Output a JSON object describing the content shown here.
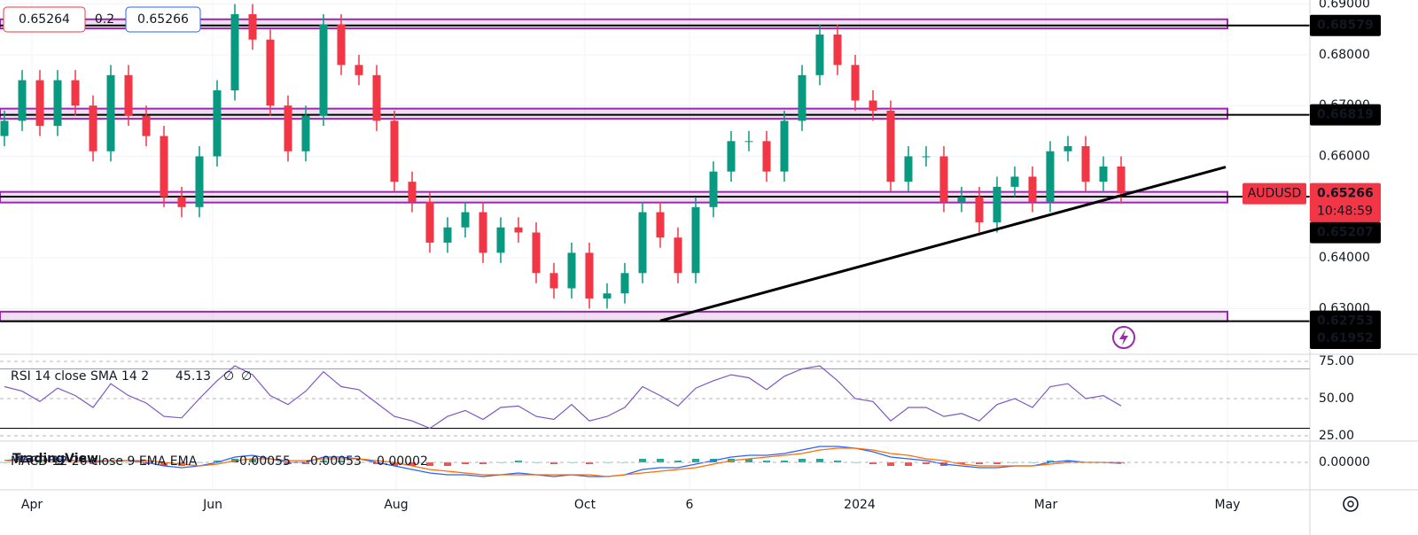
{
  "header": {
    "bid": "0.65264",
    "spread": "0.2",
    "ask": "0.65266"
  },
  "watermark": "TradingView",
  "chart_data": [
    {
      "type": "candlestick",
      "symbol": "AUDUSD",
      "open": [
        0.664,
        0.667,
        0.675,
        0.666,
        0.675,
        0.67,
        0.661,
        0.676,
        0.668,
        0.664,
        0.652,
        0.65,
        0.66,
        0.673,
        0.688,
        0.683,
        0.67,
        0.661,
        0.668,
        0.686,
        0.678,
        0.676,
        0.667,
        0.655,
        0.651,
        0.643,
        0.646,
        0.649,
        0.641,
        0.646,
        0.645,
        0.637,
        0.634,
        0.641,
        0.632,
        0.633,
        0.637,
        0.649,
        0.644,
        0.637,
        0.65,
        0.657,
        0.663,
        0.663,
        0.657,
        0.667,
        0.676,
        0.684,
        0.678,
        0.671,
        0.669,
        0.655,
        0.66,
        0.66,
        0.651,
        0.652,
        0.647,
        0.654,
        0.656,
        0.651,
        0.661,
        0.662,
        0.655,
        0.658
      ],
      "high": [
        0.669,
        0.677,
        0.677,
        0.677,
        0.677,
        0.672,
        0.678,
        0.678,
        0.67,
        0.666,
        0.654,
        0.662,
        0.675,
        0.69,
        0.69,
        0.685,
        0.672,
        0.67,
        0.688,
        0.688,
        0.68,
        0.678,
        0.669,
        0.657,
        0.653,
        0.648,
        0.651,
        0.651,
        0.648,
        0.648,
        0.647,
        0.639,
        0.643,
        0.643,
        0.635,
        0.639,
        0.651,
        0.651,
        0.646,
        0.652,
        0.659,
        0.665,
        0.665,
        0.665,
        0.669,
        0.678,
        0.686,
        0.686,
        0.68,
        0.673,
        0.671,
        0.662,
        0.662,
        0.662,
        0.654,
        0.654,
        0.656,
        0.658,
        0.658,
        0.663,
        0.664,
        0.664,
        0.66,
        0.66
      ],
      "low": [
        0.662,
        0.665,
        0.664,
        0.664,
        0.668,
        0.659,
        0.659,
        0.666,
        0.662,
        0.65,
        0.648,
        0.648,
        0.658,
        0.671,
        0.681,
        0.668,
        0.659,
        0.659,
        0.666,
        0.676,
        0.674,
        0.665,
        0.653,
        0.649,
        0.641,
        0.641,
        0.644,
        0.639,
        0.639,
        0.643,
        0.635,
        0.632,
        0.632,
        0.63,
        0.63,
        0.631,
        0.635,
        0.642,
        0.635,
        0.635,
        0.648,
        0.655,
        0.661,
        0.655,
        0.655,
        0.665,
        0.674,
        0.676,
        0.669,
        0.667,
        0.653,
        0.653,
        0.658,
        0.649,
        0.649,
        0.645,
        0.645,
        0.652,
        0.649,
        0.649,
        0.659,
        0.653,
        0.653,
        0.6507
      ],
      "close": [
        0.667,
        0.675,
        0.666,
        0.675,
        0.67,
        0.661,
        0.676,
        0.668,
        0.664,
        0.652,
        0.65,
        0.66,
        0.673,
        0.688,
        0.683,
        0.67,
        0.661,
        0.668,
        0.686,
        0.678,
        0.676,
        0.667,
        0.655,
        0.651,
        0.643,
        0.646,
        0.649,
        0.641,
        0.646,
        0.645,
        0.637,
        0.634,
        0.641,
        0.632,
        0.633,
        0.637,
        0.649,
        0.644,
        0.637,
        0.65,
        0.657,
        0.663,
        0.663,
        0.657,
        0.667,
        0.676,
        0.684,
        0.678,
        0.671,
        0.669,
        0.655,
        0.66,
        0.66,
        0.651,
        0.652,
        0.647,
        0.654,
        0.656,
        0.651,
        0.661,
        0.662,
        0.655,
        0.658,
        0.6527
      ],
      "up_color": "#089981",
      "down_color": "#f23645",
      "xlim": [
        -0.25,
        73.65
      ],
      "xticks": [
        {
          "value": 1.55,
          "label": "Apr"
        },
        {
          "value": 11.75,
          "label": "Jun"
        },
        {
          "value": 22.1,
          "label": "Aug"
        },
        {
          "value": 32.75,
          "label": "Oct"
        },
        {
          "value": 38.65,
          "label": "6"
        },
        {
          "value": 48.25,
          "label": "2024"
        },
        {
          "value": 58.75,
          "label": "Mar"
        },
        {
          "value": 69,
          "label": "May"
        }
      ],
      "ylim": [
        0.621,
        0.6908
      ],
      "yticks": [
        {
          "value": 0.69,
          "label": "0.69000"
        },
        {
          "value": 0.68,
          "label": "0.68000"
        },
        {
          "value": 0.67,
          "label": "0.67000"
        },
        {
          "value": 0.66,
          "label": "0.66000"
        },
        {
          "value": 0.64,
          "label": "0.64000"
        },
        {
          "value": 0.63,
          "label": "0.63000"
        }
      ],
      "zone_color": "#9c27b0",
      "levels": [
        {
          "value": 0.68579,
          "label": "0.68579",
          "zone": [
            0.6852,
            0.687
          ]
        },
        {
          "value": 0.66819,
          "label": "0.66819",
          "zone": [
            0.6674,
            0.6694
          ]
        },
        {
          "value": 0.65207,
          "label": "0.65207",
          "zone": [
            0.6509,
            0.653
          ]
        },
        {
          "value": 0.62753,
          "label": "0.62753",
          "zone": [
            0.6275,
            0.6294
          ]
        },
        {
          "value": 0.61952,
          "label": "0.61952"
        }
      ],
      "last_price": {
        "value": 0.65266,
        "label": "0.65266",
        "countdown": "10:48:59",
        "color": "#f23645"
      },
      "trendline": {
        "x": [
          37,
          68.9
        ],
        "y": [
          0.6276,
          0.6579
        ]
      }
    },
    {
      "type": "line",
      "title": "RSI 14 close SMA 14 2",
      "legend_values": [
        "45.13",
        "∅",
        "∅"
      ],
      "color": "#7e57c2",
      "values": [
        58,
        55,
        48,
        57,
        52,
        44,
        60,
        52,
        47,
        38,
        37,
        50,
        62,
        72,
        66,
        52,
        46,
        55,
        68,
        58,
        56,
        47,
        38,
        35,
        30,
        38,
        42,
        36,
        44,
        45,
        38,
        36,
        46,
        35,
        38,
        44,
        58,
        52,
        45,
        57,
        62,
        66,
        64,
        56,
        65,
        70,
        72,
        62,
        50,
        48,
        35,
        44,
        44,
        38,
        40,
        35,
        46,
        50,
        44,
        58,
        60,
        50,
        52,
        45.13
      ],
      "ylim": [
        21.4,
        79.76
      ],
      "yticks": [
        {
          "value": 75,
          "label": "75.00"
        },
        {
          "value": 50,
          "label": "50.00"
        },
        {
          "value": 25,
          "label": "25.00"
        }
      ],
      "levels": [
        70,
        30
      ]
    },
    {
      "type": "macd",
      "title": "MACD 12 26 close 9 EMA EMA",
      "legend_values": [
        "-0.00055",
        "-0.00053",
        "0.00002"
      ],
      "histogram": [
        0,
        0.001,
        0,
        0.001,
        0,
        -0.001,
        0,
        0,
        -0.001,
        -0.002,
        -0.002,
        0,
        0.001,
        0.002,
        0.002,
        0,
        -0.001,
        -0.001,
        0.001,
        0.001,
        0,
        -0.001,
        -0.002,
        -0.002,
        -0.002,
        -0.002,
        -0.001,
        -0.001,
        0,
        0.001,
        0,
        -0.001,
        0,
        -0.001,
        0,
        0,
        0.002,
        0.002,
        0.001,
        0.002,
        0.002,
        0.002,
        0.002,
        0.001,
        0.001,
        0.002,
        0.002,
        0.001,
        0,
        -0.001,
        -0.002,
        -0.002,
        -0.001,
        -0.002,
        -0.001,
        -0.001,
        -0.001,
        0,
        0,
        0.001,
        0.001,
        0,
        0,
        -0.00055
      ],
      "series": [
        {
          "name": "MACD",
          "color": "#2962ff",
          "values": [
            0.001,
            0.002,
            0.001,
            0.002,
            0.001,
            0,
            0.001,
            0.001,
            0,
            -0.002,
            -0.003,
            -0.002,
            0,
            0.003,
            0.004,
            0.002,
            0,
            0,
            0.003,
            0.003,
            0.002,
            0,
            -0.002,
            -0.004,
            -0.006,
            -0.007,
            -0.007,
            -0.008,
            -0.007,
            -0.006,
            -0.007,
            -0.008,
            -0.007,
            -0.008,
            -0.008,
            -0.007,
            -0.004,
            -0.003,
            -0.003,
            -0.001,
            0.001,
            0.003,
            0.004,
            0.004,
            0.005,
            0.007,
            0.009,
            0.009,
            0.008,
            0.006,
            0.003,
            0.002,
            0.001,
            -0.001,
            -0.002,
            -0.003,
            -0.003,
            -0.002,
            -0.002,
            0,
            0.001,
            0,
            0,
            -0.00053
          ]
        },
        {
          "name": "Signal",
          "color": "#ff6d00",
          "values": [
            0.001,
            0.001,
            0.001,
            0.001,
            0.001,
            0.001,
            0.001,
            0.001,
            0.001,
            0,
            -0.001,
            -0.002,
            -0.001,
            0.001,
            0.002,
            0.002,
            0.001,
            0.001,
            0.002,
            0.002,
            0.002,
            0.001,
            0,
            -0.002,
            -0.004,
            -0.005,
            -0.006,
            -0.007,
            -0.007,
            -0.007,
            -0.007,
            -0.007,
            -0.007,
            -0.007,
            -0.008,
            -0.007,
            -0.006,
            -0.005,
            -0.004,
            -0.003,
            -0.001,
            0.001,
            0.002,
            0.003,
            0.004,
            0.005,
            0.007,
            0.008,
            0.008,
            0.007,
            0.005,
            0.004,
            0.002,
            0.001,
            -0.001,
            -0.002,
            -0.002,
            -0.002,
            -0.002,
            -0.001,
            0,
            0,
            0,
            2e-05
          ]
        }
      ],
      "hist_up": "#26a69a",
      "hist_down": "#ef5350",
      "ylim": [
        -0.0155,
        0.012
      ],
      "yticks": [
        {
          "value": 0,
          "label": "0.00000"
        }
      ]
    }
  ]
}
